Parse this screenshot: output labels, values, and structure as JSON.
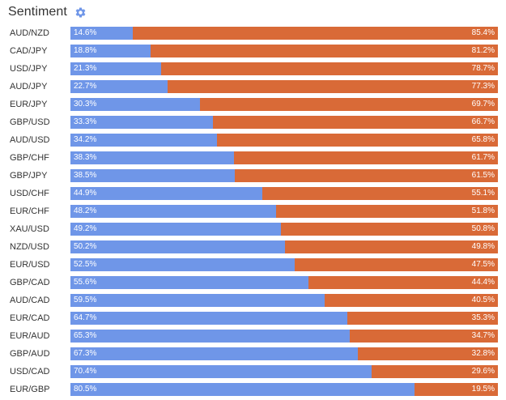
{
  "header": {
    "title": "Sentiment",
    "settings_icon": "gear-icon"
  },
  "colors": {
    "long": "#6f96e8",
    "short": "#d96a37",
    "text": "#333333"
  },
  "rows": [
    {
      "pair": "AUD/NZD",
      "long": 14.6,
      "short": 85.4,
      "long_label": "14.6%",
      "short_label": "85.4%"
    },
    {
      "pair": "CAD/JPY",
      "long": 18.8,
      "short": 81.2,
      "long_label": "18.8%",
      "short_label": "81.2%"
    },
    {
      "pair": "USD/JPY",
      "long": 21.3,
      "short": 78.7,
      "long_label": "21.3%",
      "short_label": "78.7%"
    },
    {
      "pair": "AUD/JPY",
      "long": 22.7,
      "short": 77.3,
      "long_label": "22.7%",
      "short_label": "77.3%"
    },
    {
      "pair": "EUR/JPY",
      "long": 30.3,
      "short": 69.7,
      "long_label": "30.3%",
      "short_label": "69.7%"
    },
    {
      "pair": "GBP/USD",
      "long": 33.3,
      "short": 66.7,
      "long_label": "33.3%",
      "short_label": "66.7%"
    },
    {
      "pair": "AUD/USD",
      "long": 34.2,
      "short": 65.8,
      "long_label": "34.2%",
      "short_label": "65.8%"
    },
    {
      "pair": "GBP/CHF",
      "long": 38.3,
      "short": 61.7,
      "long_label": "38.3%",
      "short_label": "61.7%"
    },
    {
      "pair": "GBP/JPY",
      "long": 38.5,
      "short": 61.5,
      "long_label": "38.5%",
      "short_label": "61.5%"
    },
    {
      "pair": "USD/CHF",
      "long": 44.9,
      "short": 55.1,
      "long_label": "44.9%",
      "short_label": "55.1%"
    },
    {
      "pair": "EUR/CHF",
      "long": 48.2,
      "short": 51.8,
      "long_label": "48.2%",
      "short_label": "51.8%"
    },
    {
      "pair": "XAU/USD",
      "long": 49.2,
      "short": 50.8,
      "long_label": "49.2%",
      "short_label": "50.8%"
    },
    {
      "pair": "NZD/USD",
      "long": 50.2,
      "short": 49.8,
      "long_label": "50.2%",
      "short_label": "49.8%"
    },
    {
      "pair": "EUR/USD",
      "long": 52.5,
      "short": 47.5,
      "long_label": "52.5%",
      "short_label": "47.5%"
    },
    {
      "pair": "GBP/CAD",
      "long": 55.6,
      "short": 44.4,
      "long_label": "55.6%",
      "short_label": "44.4%"
    },
    {
      "pair": "AUD/CAD",
      "long": 59.5,
      "short": 40.5,
      "long_label": "59.5%",
      "short_label": "40.5%"
    },
    {
      "pair": "EUR/CAD",
      "long": 64.7,
      "short": 35.3,
      "long_label": "64.7%",
      "short_label": "35.3%"
    },
    {
      "pair": "EUR/AUD",
      "long": 65.3,
      "short": 34.7,
      "long_label": "65.3%",
      "short_label": "34.7%"
    },
    {
      "pair": "GBP/AUD",
      "long": 67.3,
      "short": 32.8,
      "long_label": "67.3%",
      "short_label": "32.8%"
    },
    {
      "pair": "USD/CAD",
      "long": 70.4,
      "short": 29.6,
      "long_label": "70.4%",
      "short_label": "29.6%"
    },
    {
      "pair": "EUR/GBP",
      "long": 80.5,
      "short": 19.5,
      "long_label": "80.5%",
      "short_label": "19.5%"
    }
  ]
}
